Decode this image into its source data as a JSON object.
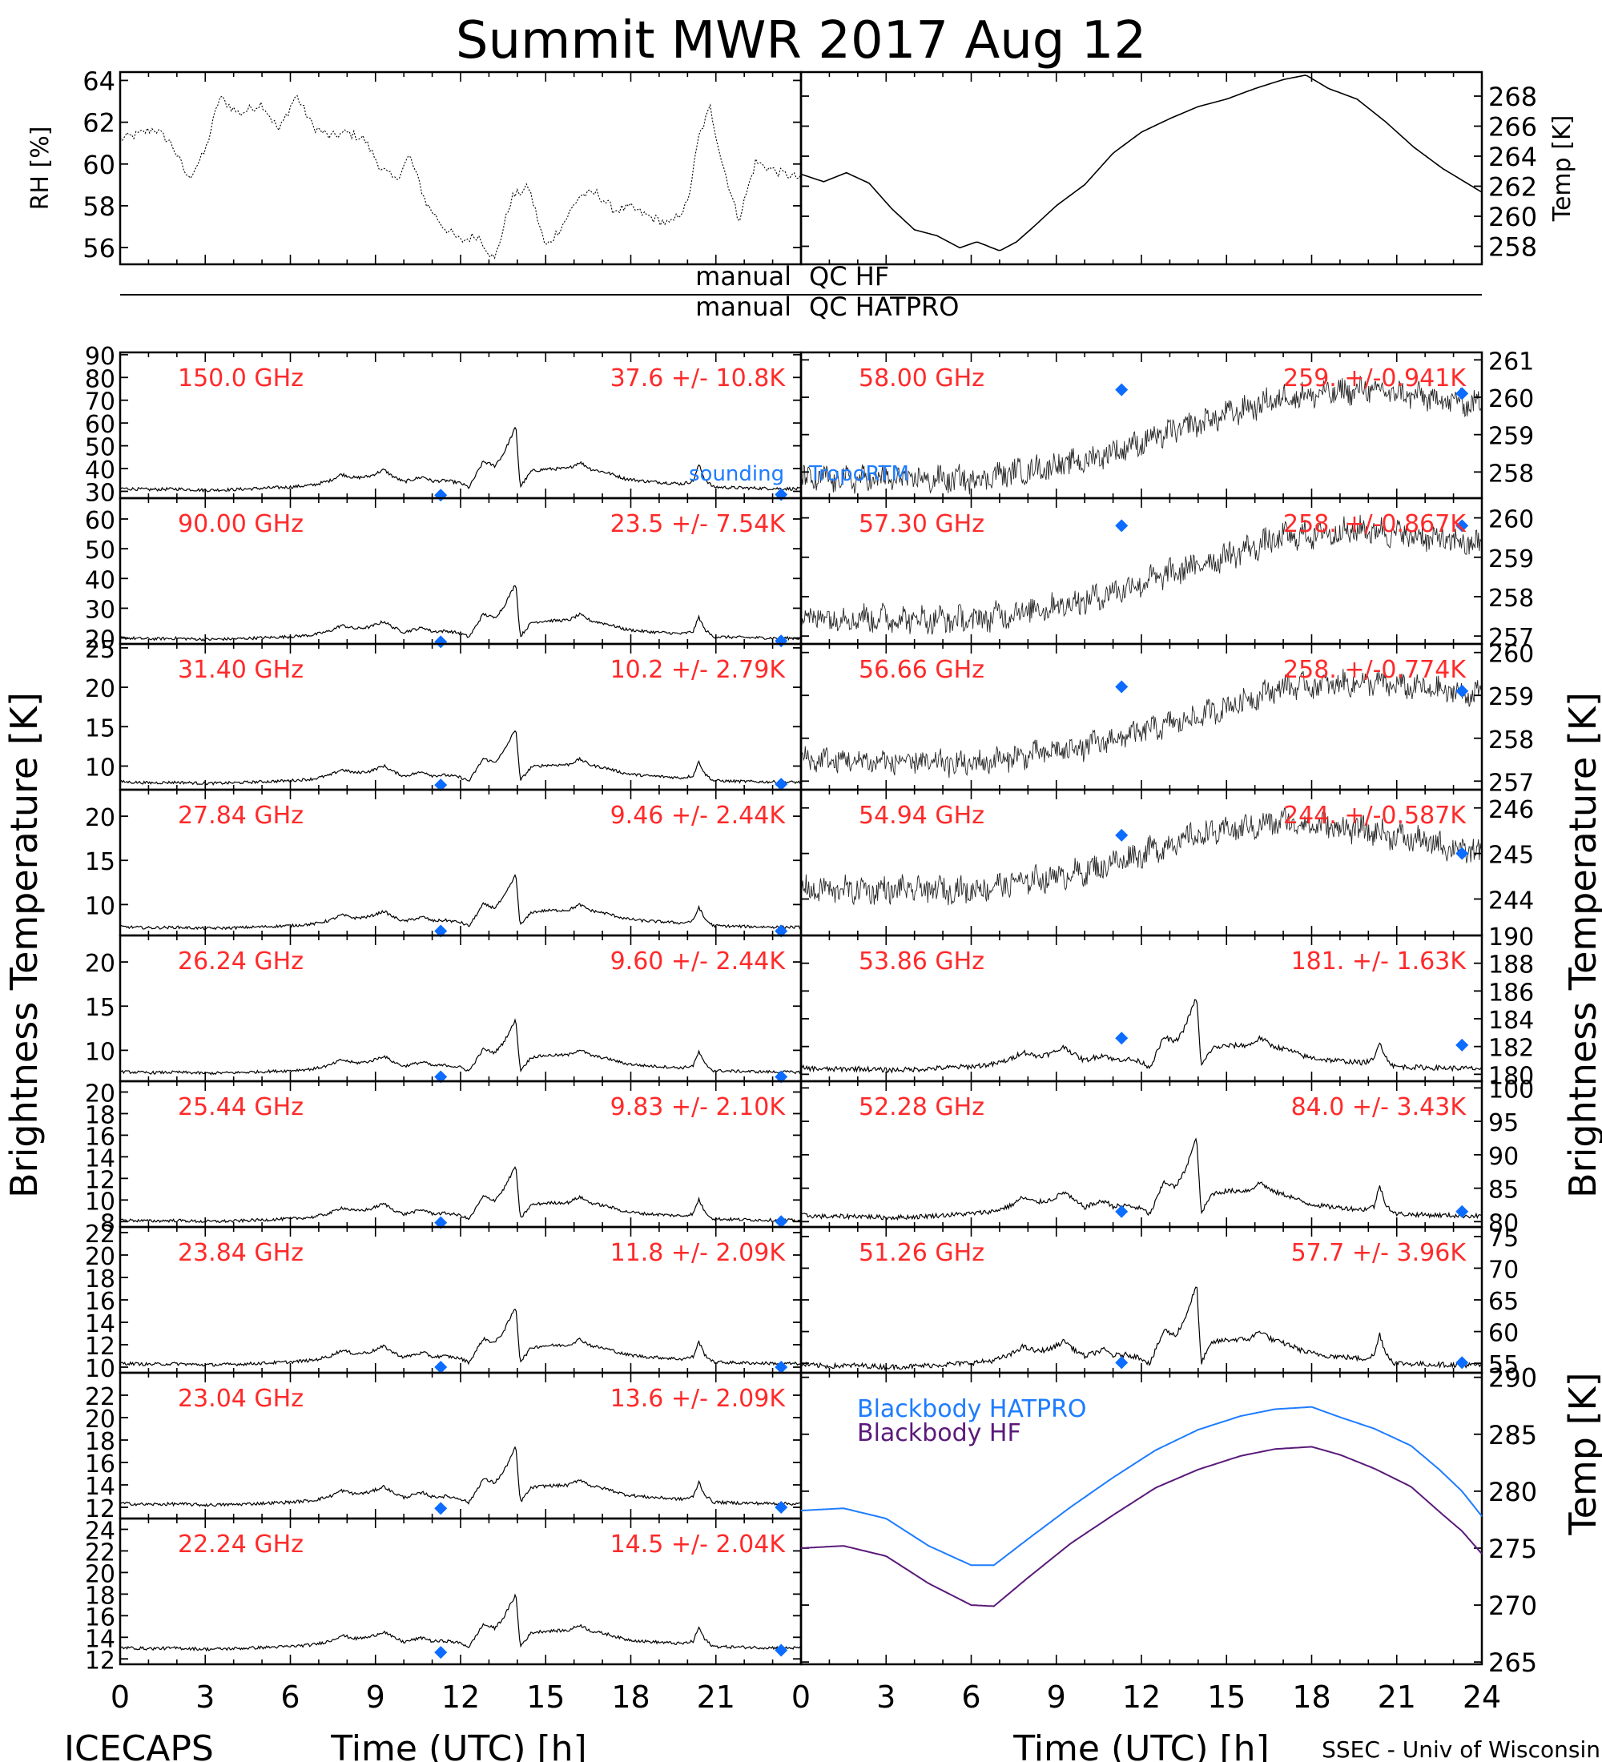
{
  "title": "Summit MWR 2017 Aug 12",
  "footer_left": "ICECAPS",
  "footer_right": "SSEC - Univ of Wisconsin",
  "colors": {
    "label_red": "#ff2a2a",
    "marker_blue": "#0b6cff",
    "hatpro_blue": "#1e7cff",
    "hf_purple": "#5a1a7a",
    "trace": "#000000"
  },
  "qc_labels": {
    "left_hf": "manual",
    "right_hf": "QC HF",
    "left_hatpro": "manual",
    "right_hatpro": "QC HATPRO"
  },
  "legend_sounding": "sounding",
  "legend_tropo": "TropoRTM",
  "shared_labels": {
    "left_ylabel": "Brightness Temperature [K]",
    "right_ylabel": "Brightness Temperature [K]",
    "xlabel": "Time (UTC) [h]",
    "bottom_right_ylabel": "Temp [K]"
  },
  "chart_data": [
    {
      "id": "rh",
      "type": "line",
      "ylabel": "RH [%]",
      "ylim": [
        55.2,
        64.4
      ],
      "yticks": [
        56,
        58,
        60,
        62,
        64
      ],
      "series": [
        {
          "values_at_hours": [
            [
              0,
              61.2
            ],
            [
              0.6,
              61.4
            ],
            [
              1.2,
              61.7
            ],
            [
              1.8,
              61.0
            ],
            [
              2.4,
              59.3
            ],
            [
              3.0,
              60.6
            ],
            [
              3.5,
              63.2
            ],
            [
              4.2,
              62.4
            ],
            [
              5.0,
              62.9
            ],
            [
              5.6,
              61.6
            ],
            [
              6.2,
              63.3
            ],
            [
              6.8,
              61.8
            ],
            [
              7.4,
              61.3
            ],
            [
              8.0,
              61.5
            ],
            [
              8.6,
              61.2
            ],
            [
              9.2,
              59.8
            ],
            [
              9.7,
              59.2
            ],
            [
              10.2,
              60.4
            ],
            [
              10.8,
              58.1
            ],
            [
              11.4,
              57.0
            ],
            [
              12.0,
              56.3
            ],
            [
              12.6,
              56.6
            ],
            [
              13.2,
              55.4
            ],
            [
              13.8,
              58.4
            ],
            [
              14.4,
              58.9
            ],
            [
              15.0,
              56.0
            ],
            [
              15.6,
              57.1
            ],
            [
              16.2,
              58.5
            ],
            [
              16.8,
              58.6
            ],
            [
              17.4,
              57.8
            ],
            [
              18.0,
              57.9
            ],
            [
              18.6,
              57.5
            ],
            [
              19.4,
              57.1
            ],
            [
              20.0,
              58.1
            ],
            [
              20.4,
              61.3
            ],
            [
              20.8,
              62.7
            ],
            [
              21.2,
              60.2
            ],
            [
              21.8,
              57.3
            ],
            [
              22.4,
              60.1
            ],
            [
              23.2,
              59.6
            ],
            [
              24,
              59.3
            ]
          ]
        }
      ]
    },
    {
      "id": "temp",
      "type": "line",
      "ylabel": "Temp [K]",
      "ylim": [
        256.8,
        269.6
      ],
      "yticks": [
        258,
        260,
        262,
        264,
        266,
        268
      ],
      "series": [
        {
          "values_at_hours": [
            [
              0,
              262.8
            ],
            [
              0.8,
              262.3
            ],
            [
              1.6,
              262.9
            ],
            [
              2.4,
              262.2
            ],
            [
              3.2,
              260.5
            ],
            [
              4.0,
              259.1
            ],
            [
              4.8,
              258.7
            ],
            [
              5.6,
              257.9
            ],
            [
              6.2,
              258.3
            ],
            [
              7.0,
              257.7
            ],
            [
              7.6,
              258.3
            ],
            [
              8.2,
              259.3
            ],
            [
              9.0,
              260.7
            ],
            [
              10.0,
              262.1
            ],
            [
              11.0,
              264.2
            ],
            [
              12.0,
              265.6
            ],
            [
              13.0,
              266.5
            ],
            [
              14.0,
              267.3
            ],
            [
              15.0,
              267.8
            ],
            [
              16.0,
              268.5
            ],
            [
              17.0,
              269.1
            ],
            [
              17.8,
              269.4
            ],
            [
              18.6,
              268.5
            ],
            [
              19.6,
              267.8
            ],
            [
              20.6,
              266.3
            ],
            [
              21.6,
              264.6
            ],
            [
              22.6,
              263.2
            ],
            [
              24,
              261.6
            ]
          ]
        }
      ]
    },
    {
      "id": "f150",
      "type": "line",
      "freq": "150.0 GHz",
      "stats": "37.6 +/- 10.8K",
      "ylim": [
        27,
        91
      ],
      "yticks": [
        30,
        40,
        50,
        60,
        70,
        80,
        90
      ],
      "base": 30.5,
      "amp": 28,
      "noise": 0.7,
      "sounding": [
        [
          11.3,
          28.3
        ],
        [
          23.3,
          28.6
        ]
      ]
    },
    {
      "id": "f90",
      "type": "line",
      "freq": "90.00 GHz",
      "stats": "23.5 +/- 7.54K",
      "ylim": [
        18,
        67
      ],
      "yticks": [
        20,
        30,
        40,
        50,
        60
      ],
      "base": 19.5,
      "amp": 19,
      "noise": 0.5,
      "sounding": [
        [
          11.3,
          18.7
        ],
        [
          23.3,
          19.0
        ]
      ]
    },
    {
      "id": "f3140",
      "type": "line",
      "freq": "31.40 GHz",
      "stats": "10.2 +/- 2.79K",
      "ylim": [
        7,
        25.5
      ],
      "yticks": [
        10,
        15,
        20,
        25
      ],
      "base": 7.8,
      "amp": 7.0,
      "noise": 0.18,
      "sounding": [
        [
          11.3,
          7.6
        ],
        [
          23.3,
          7.7
        ]
      ]
    },
    {
      "id": "f2784",
      "type": "line",
      "freq": "27.84 GHz",
      "stats": "9.46 +/- 2.44K",
      "ylim": [
        6.5,
        23
      ],
      "yticks": [
        10,
        15,
        20
      ],
      "base": 7.3,
      "amp": 6.1,
      "noise": 0.16,
      "sounding": [
        [
          11.3,
          7.0
        ],
        [
          23.3,
          7.0
        ]
      ]
    },
    {
      "id": "f2624",
      "type": "line",
      "freq": "26.24 GHz",
      "stats": "9.60 +/- 2.44K",
      "ylim": [
        6.5,
        23
      ],
      "yticks": [
        10,
        15,
        20
      ],
      "base": 7.4,
      "amp": 6.1,
      "noise": 0.16,
      "sounding": [
        [
          11.3,
          7.0
        ],
        [
          23.3,
          7.0
        ]
      ]
    },
    {
      "id": "f2544",
      "type": "line",
      "freq": "25.44 GHz",
      "stats": "9.83 +/- 2.10K",
      "ylim": [
        7.5,
        21
      ],
      "yticks": [
        8,
        10,
        12,
        14,
        16,
        18,
        20
      ],
      "base": 8.0,
      "amp": 5.2,
      "noise": 0.14,
      "sounding": [
        [
          11.3,
          7.9
        ],
        [
          23.3,
          8.0
        ]
      ]
    },
    {
      "id": "f2384",
      "type": "line",
      "freq": "23.84 GHz",
      "stats": "11.8 +/- 2.09K",
      "ylim": [
        9.5,
        22.5
      ],
      "yticks": [
        10,
        12,
        14,
        16,
        18,
        20,
        22
      ],
      "base": 10.2,
      "amp": 5.2,
      "noise": 0.14,
      "sounding": [
        [
          11.3,
          10.0
        ],
        [
          23.3,
          10.0
        ]
      ]
    },
    {
      "id": "f2304",
      "type": "line",
      "freq": "23.04 GHz",
      "stats": "13.6 +/- 2.09K",
      "ylim": [
        11,
        24
      ],
      "yticks": [
        12,
        14,
        16,
        18,
        20,
        22
      ],
      "base": 12.2,
      "amp": 5.2,
      "noise": 0.14,
      "sounding": [
        [
          11.3,
          11.9
        ],
        [
          23.3,
          12.0
        ]
      ]
    },
    {
      "id": "f2224",
      "type": "line",
      "freq": "22.24 GHz",
      "stats": "14.5 +/- 2.04K",
      "ylim": [
        11.5,
        25
      ],
      "yticks": [
        12,
        14,
        16,
        18,
        20,
        22,
        24
      ],
      "base": 12.9,
      "amp": 5.1,
      "noise": 0.14,
      "sounding": [
        [
          11.3,
          12.6
        ],
        [
          23.3,
          12.8
        ]
      ]
    },
    {
      "id": "f5800",
      "type": "scatter",
      "freq": "58.00 GHz",
      "stats": "259. +/-0.941K",
      "ylim": [
        257.3,
        261.2
      ],
      "yticks": [
        258,
        259,
        260,
        261
      ],
      "trend": [
        [
          0,
          257.8
        ],
        [
          6,
          257.8
        ],
        [
          10,
          258.3
        ],
        [
          14,
          259.3
        ],
        [
          17,
          260.0
        ],
        [
          20,
          260.2
        ],
        [
          24,
          259.8
        ]
      ],
      "noise": 0.3,
      "sounding": [
        [
          11.3,
          260.2
        ],
        [
          23.3,
          260.1
        ]
      ]
    },
    {
      "id": "f5730",
      "type": "scatter",
      "freq": "57.30 GHz",
      "stats": "258. +/-0.867K",
      "ylim": [
        256.8,
        260.5
      ],
      "yticks": [
        257,
        258,
        259,
        260
      ],
      "trend": [
        [
          0,
          257.5
        ],
        [
          6,
          257.4
        ],
        [
          10,
          257.9
        ],
        [
          14,
          258.8
        ],
        [
          17,
          259.5
        ],
        [
          20,
          259.7
        ],
        [
          24,
          259.3
        ]
      ],
      "noise": 0.3,
      "sounding": [
        [
          11.3,
          259.8
        ],
        [
          23.3,
          259.8
        ]
      ]
    },
    {
      "id": "f5666",
      "type": "scatter",
      "freq": "56.66 GHz",
      "stats": "258. +/-0.774K",
      "ylim": [
        256.8,
        260.2
      ],
      "yticks": [
        257,
        258,
        259,
        260
      ],
      "trend": [
        [
          0,
          257.5
        ],
        [
          6,
          257.4
        ],
        [
          10,
          257.8
        ],
        [
          14,
          258.5
        ],
        [
          17,
          259.2
        ],
        [
          20,
          259.3
        ],
        [
          24,
          259.0
        ]
      ],
      "noise": 0.25,
      "sounding": [
        [
          11.3,
          259.2
        ],
        [
          23.3,
          259.1
        ]
      ]
    },
    {
      "id": "f5494",
      "type": "scatter",
      "freq": "54.94 GHz",
      "stats": "244. +/-0.587K",
      "ylim": [
        243.2,
        246.4
      ],
      "yticks": [
        244,
        245,
        246
      ],
      "trend": [
        [
          0,
          244.2
        ],
        [
          6,
          244.2
        ],
        [
          10,
          244.6
        ],
        [
          14,
          245.4
        ],
        [
          17,
          245.7
        ],
        [
          20,
          245.5
        ],
        [
          24,
          245.0
        ]
      ],
      "noise": 0.25,
      "sounding": [
        [
          11.3,
          245.4
        ],
        [
          23.3,
          245.0
        ]
      ]
    },
    {
      "id": "f5386",
      "type": "line",
      "freq": "53.86 GHz",
      "stats": "181. +/- 1.63K",
      "ylim": [
        179.5,
        190
      ],
      "yticks": [
        180,
        182,
        184,
        186,
        188,
        190
      ],
      "base": 180.3,
      "amp": 5.3,
      "noise": 0.18,
      "sounding": [
        [
          11.3,
          182.6
        ],
        [
          23.3,
          182.1
        ]
      ]
    },
    {
      "id": "f5228",
      "type": "line",
      "freq": "52.28 GHz",
      "stats": "84.0 +/- 3.43K",
      "ylim": [
        79.2,
        101
      ],
      "yticks": [
        80,
        85,
        90,
        95,
        100
      ],
      "base": 80.6,
      "amp": 12,
      "noise": 0.35,
      "sounding": [
        [
          11.3,
          81.5
        ],
        [
          23.3,
          81.5
        ]
      ]
    },
    {
      "id": "f5126",
      "type": "line",
      "freq": "51.26 GHz",
      "stats": "57.7 +/- 3.96K",
      "ylim": [
        53.5,
        76.5
      ],
      "yticks": [
        55,
        60,
        65,
        70,
        75
      ],
      "base": 54.4,
      "amp": 13,
      "noise": 0.4,
      "sounding": [
        [
          11.3,
          55.1
        ],
        [
          23.3,
          55.1
        ]
      ]
    },
    {
      "id": "bb",
      "type": "line",
      "ylabel": "Temp [K]",
      "ylim": [
        264.8,
        290.4
      ],
      "yticks": [
        265,
        270,
        275,
        280,
        285,
        290
      ],
      "series": [
        {
          "name": "Blackbody HATPRO",
          "values_at_hours": [
            [
              0,
              278.3
            ],
            [
              1.5,
              278.5
            ],
            [
              3,
              277.6
            ],
            [
              4.5,
              275.2
            ],
            [
              6,
              273.5
            ],
            [
              6.8,
              273.5
            ],
            [
              8,
              275.8
            ],
            [
              9.5,
              278.6
            ],
            [
              11,
              281.2
            ],
            [
              12.5,
              283.6
            ],
            [
              14,
              285.4
            ],
            [
              15.5,
              286.6
            ],
            [
              16.7,
              287.2
            ],
            [
              18,
              287.4
            ],
            [
              19,
              286.5
            ],
            [
              20.2,
              285.5
            ],
            [
              21.5,
              284.0
            ],
            [
              22.5,
              281.9
            ],
            [
              23.3,
              280.0
            ],
            [
              24,
              277.8
            ]
          ]
        },
        {
          "name": "Blackbody HF",
          "values_at_hours": [
            [
              0,
              275.0
            ],
            [
              1.5,
              275.2
            ],
            [
              3,
              274.3
            ],
            [
              4.5,
              271.9
            ],
            [
              6,
              270.0
            ],
            [
              6.8,
              269.9
            ],
            [
              8,
              272.4
            ],
            [
              9.5,
              275.4
            ],
            [
              11,
              277.9
            ],
            [
              12.5,
              280.3
            ],
            [
              14,
              281.9
            ],
            [
              15.5,
              283.1
            ],
            [
              16.7,
              283.7
            ],
            [
              18,
              283.9
            ],
            [
              19,
              283.2
            ],
            [
              20.2,
              282.0
            ],
            [
              21.5,
              280.4
            ],
            [
              22.5,
              278.2
            ],
            [
              23.3,
              276.5
            ],
            [
              24,
              274.5
            ]
          ]
        }
      ]
    }
  ]
}
